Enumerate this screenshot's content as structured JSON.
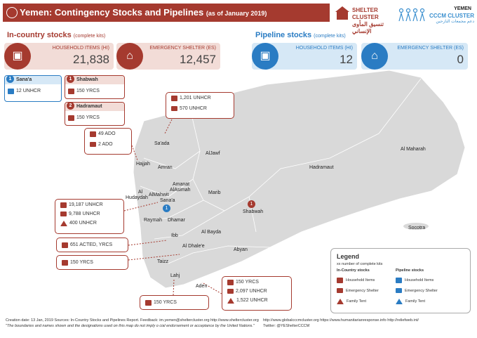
{
  "header": {
    "title": "Yemen: Contingency Stocks and Pipelines",
    "subtitle": "(as of January 2019)",
    "country": "YEMEN",
    "shelter_cluster": "SHELTER CLUSTER",
    "shelter_cluster_ar": "تنسيق المأوى الإنساني",
    "cccm_cluster": "CCCM CLUSTER",
    "cccm_cluster_ar": "دعم مجمعات النازحين"
  },
  "in_country": {
    "title": "In-country stocks",
    "note": "(complete kits)",
    "hi_label": "HOUSEHOLD ITEMS (HI)",
    "hi_value": "21,838",
    "es_label": "EMERGENCY SHELTER (ES)",
    "es_value": "12,457"
  },
  "pipeline": {
    "title": "Pipeline stocks",
    "note": "(complete kits)",
    "hi_label": "HOUSEHOLD ITEMS (HI)",
    "hi_value": "12",
    "es_label": "EMERGENCY SHELTER (ES)",
    "es_value": "0"
  },
  "gov_boxes": [
    {
      "num": "1",
      "name": "Sana'a",
      "value": "12 UNHCR"
    },
    {
      "num": "1",
      "name": "Shabwah",
      "value": "150 YRCS"
    },
    {
      "num": "2",
      "name": "Hadramaut",
      "value": "150 YRCS"
    }
  ],
  "callouts": {
    "saada": [
      "1,201 UNHCR",
      "570 UNHCR"
    ],
    "hajjah": [
      "49 ADO",
      "2 ADO"
    ],
    "sanaa": [
      "19,187 UNHCR",
      "9,788 UNHCR",
      "400 UNHCR"
    ],
    "ibb": "651 ACTED, YRCS",
    "taizz": "150 YRCS",
    "lahj": "150 YRCS",
    "aden": [
      "150 YRCS",
      "2,097 UNHCR",
      "1,522 UNHCR"
    ]
  },
  "cities": {
    "saada": "Sa'ada",
    "aljawf": "AlJawf",
    "almaharah": "Al Maharah",
    "hajjah": "Hajjah",
    "amran": "Amran",
    "hadramaut": "Hadramaut",
    "amanat1": "Amanat",
    "amanat2": "AlAsimah",
    "al": "Al",
    "alhudaydah": "Hudaydah",
    "almahwit": "AlMahwit",
    "sanaa": "Sana'a",
    "marib": "Marib",
    "shabwah": "Shabwah",
    "raymah": "Raymah",
    "dhamar": "Dhamar",
    "albayda": "Al Bayda",
    "ibb": "Ibb",
    "aldhale": "Al Dhale'e",
    "abyan": "Abyan",
    "taizz": "Taizz",
    "lahj": "Lahj",
    "aden": "Aden",
    "socotra": "Socotra"
  },
  "map_badges": {
    "sanaa": "1",
    "shabwah": "1"
  },
  "legend": {
    "title": "Legend",
    "xx": "xx",
    "xx_desc": "number of complete kits",
    "in_country": "In-Country stocks",
    "pipeline": "Pipeline stocks",
    "household": "Household Items",
    "shelter": "Emergency Shelter",
    "tent": "Family Tent"
  },
  "footer": {
    "line1_left": "Creation date: 13 Jan, 2019   Sources: In-Country Stocks and Pipelines Report.   Feedback: im.yemen@sheltercluster.org   http://www.sheltercluster.org",
    "line1_right": "http://www.globalcccmcluster.org     https://www.humanitarianresponse.info     http://reliefweb.int/",
    "line2_left": "\"The boundaries and names shown and the designations used on this map do not imply o   cial endorsement or acceptance by the United Nations.\"",
    "line2_right": "Twitter: @YEShelterCCCM"
  },
  "colors": {
    "accent": "#a53a2f",
    "pipeline": "#2a7cc3",
    "map_fill": "#d9d9d9"
  }
}
